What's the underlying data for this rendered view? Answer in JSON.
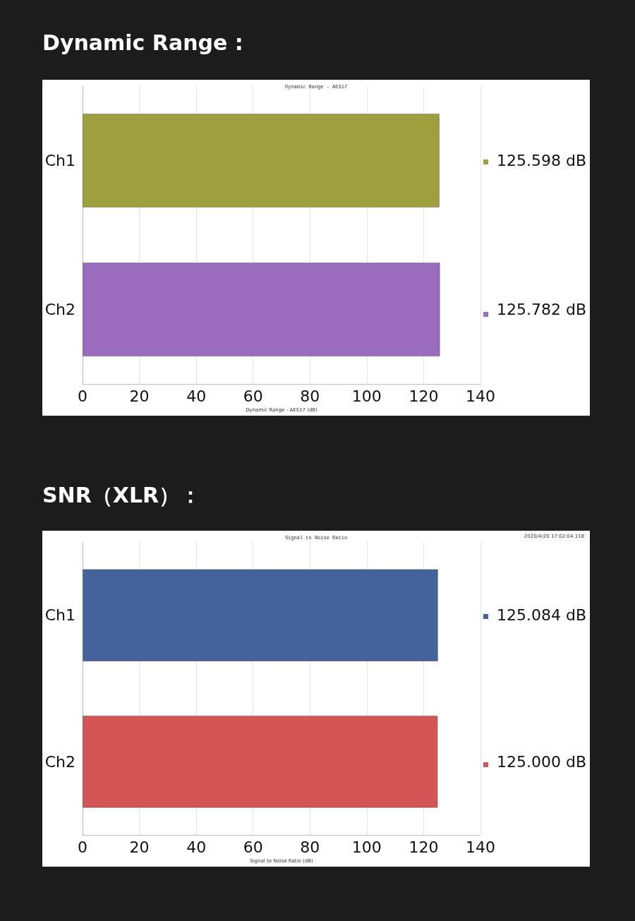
{
  "chart_data": [
    {
      "type": "bar",
      "orientation": "horizontal",
      "title": "Dynamic Range :",
      "subtitle": "Dynamic Range - AES17",
      "xlabel": "Dynamic Range - AES17 (dB)",
      "categories": [
        "Ch1",
        "Ch2"
      ],
      "values": [
        125.598,
        125.782
      ],
      "colors": [
        "#9ea040",
        "#9a6cbd"
      ],
      "value_labels": [
        "125.598 dB",
        "125.782 dB"
      ],
      "xlim": [
        0,
        140
      ],
      "xticks": [
        0,
        20,
        40,
        60,
        80,
        100,
        120,
        140
      ],
      "grid": "x"
    },
    {
      "type": "bar",
      "orientation": "horizontal",
      "title": "SNR（XLR）：",
      "subtitle": "Signal to Noise Ratio",
      "annotations": [
        "2020/4/20 17:02:04.118"
      ],
      "xlabel": "Signal to Noise Ratio (dB)",
      "categories": [
        "Ch1",
        "Ch2"
      ],
      "values": [
        125.084,
        125.0
      ],
      "colors": [
        "#46629a",
        "#d45555"
      ],
      "value_labels": [
        "125.084 dB",
        "125.000 dB"
      ],
      "xlim": [
        0,
        140
      ],
      "xticks": [
        0,
        20,
        40,
        60,
        80,
        100,
        120,
        140
      ],
      "grid": "x"
    }
  ]
}
